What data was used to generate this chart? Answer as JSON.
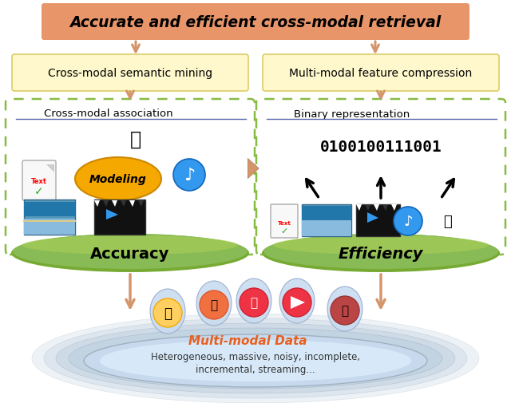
{
  "title": "Accurate and efficient cross-modal retrieval",
  "title_bg": "#E8956A",
  "left_box_label": "Cross-modal semantic mining",
  "right_box_label": "Multi-modal feature compression",
  "label_bg": "#FFF8CC",
  "label_border": "#DDCC66",
  "left_section_title": "Cross-modal association",
  "right_section_title": "Binary representation",
  "left_section_label": "Accuracy",
  "right_section_label": "Efficiency",
  "binary_code": "0100100111001",
  "modeling_text": "Modeling",
  "modeling_color": "#F5A800",
  "multimodal_label": "Multi-modal Data",
  "multimodal_color": "#E86020",
  "multimodal_desc1": "Heterogeneous, massive, noisy, incomplete,",
  "multimodal_desc2": "incremental, streaming...",
  "dashed_box_color": "#88BB44",
  "arrow_color": "#D4956A",
  "green_ellipse_color": "#88BB55",
  "green_ellipse_edge": "#77AA33",
  "blue_ellipse_outer": "#BBCEDD",
  "blue_ellipse_inner": "#D8E8F0",
  "background": "#FFFFFF",
  "section_line_color": "#5566AA",
  "icon_ellipse_bg": "#C8DCF0",
  "icon_ellipse_edge": "#99AACC"
}
